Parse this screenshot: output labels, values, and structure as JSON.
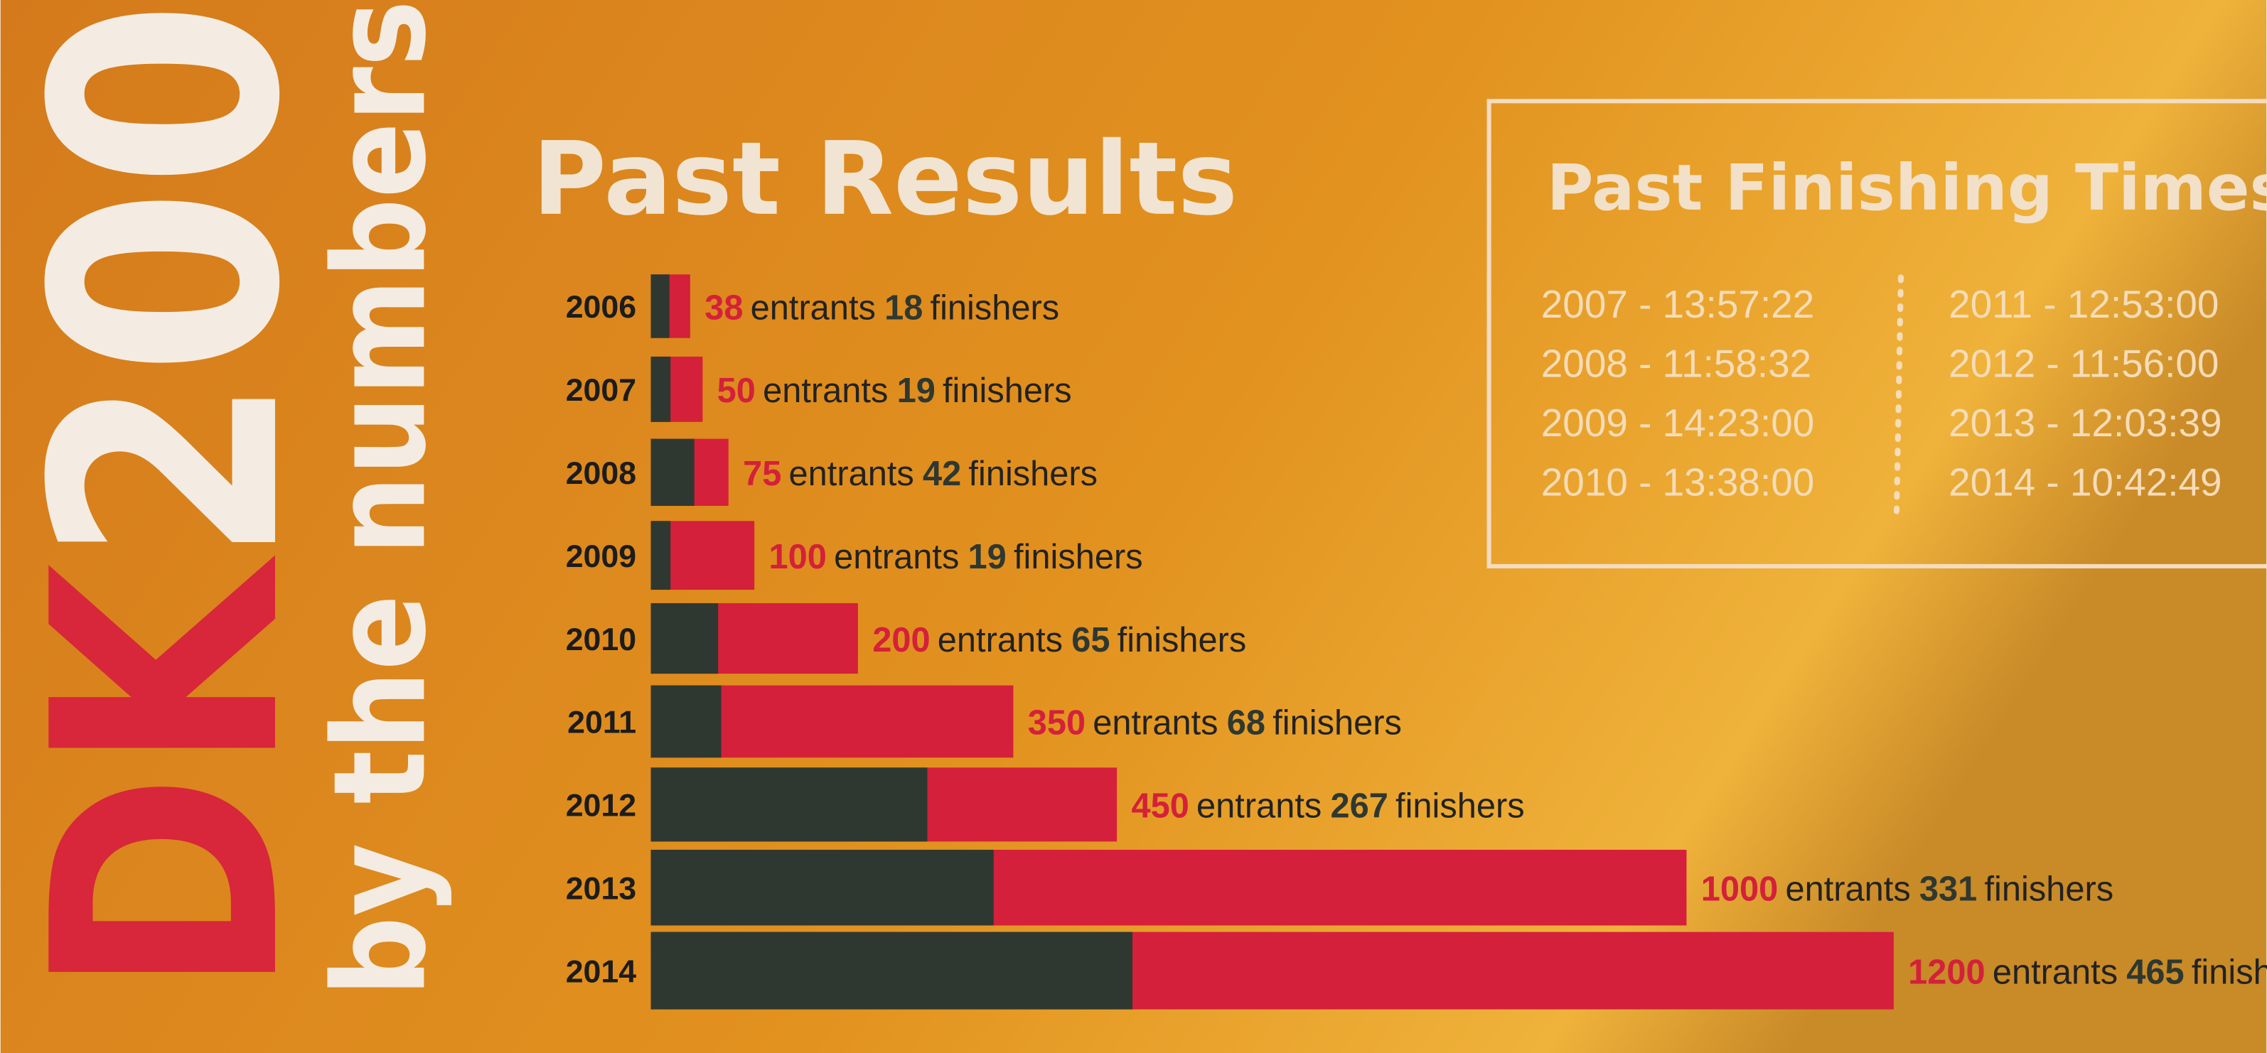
{
  "logo": {
    "text_1": "DK",
    "text_2": "200",
    "tagline": "by the numbers"
  },
  "chart_data": {
    "type": "bar",
    "orientation": "horizontal",
    "title": "Past Results",
    "categories": [
      "2006",
      "2007",
      "2008",
      "2009",
      "2010",
      "2011",
      "2012",
      "2013",
      "2014"
    ],
    "series": [
      {
        "name": "entrants",
        "color": "#d4203a",
        "values": [
          38,
          50,
          75,
          100,
          200,
          350,
          450,
          1000,
          1200
        ]
      },
      {
        "name": "finishers",
        "color": "#2e3830",
        "values": [
          18,
          19,
          42,
          19,
          65,
          68,
          267,
          331,
          465
        ]
      }
    ]
  },
  "finishing_times": {
    "title": "Past Finishing Times",
    "columns": [
      [
        "2007 - 13:57:22",
        "2008 - 11:58:32",
        "2009 - 14:23:00",
        "2010 - 13:38:00"
      ],
      [
        "2011 - 12:53:00",
        "2012 - 11:56:00",
        "2013 - 12:03:39",
        "2014 - 10:42:49"
      ]
    ]
  }
}
